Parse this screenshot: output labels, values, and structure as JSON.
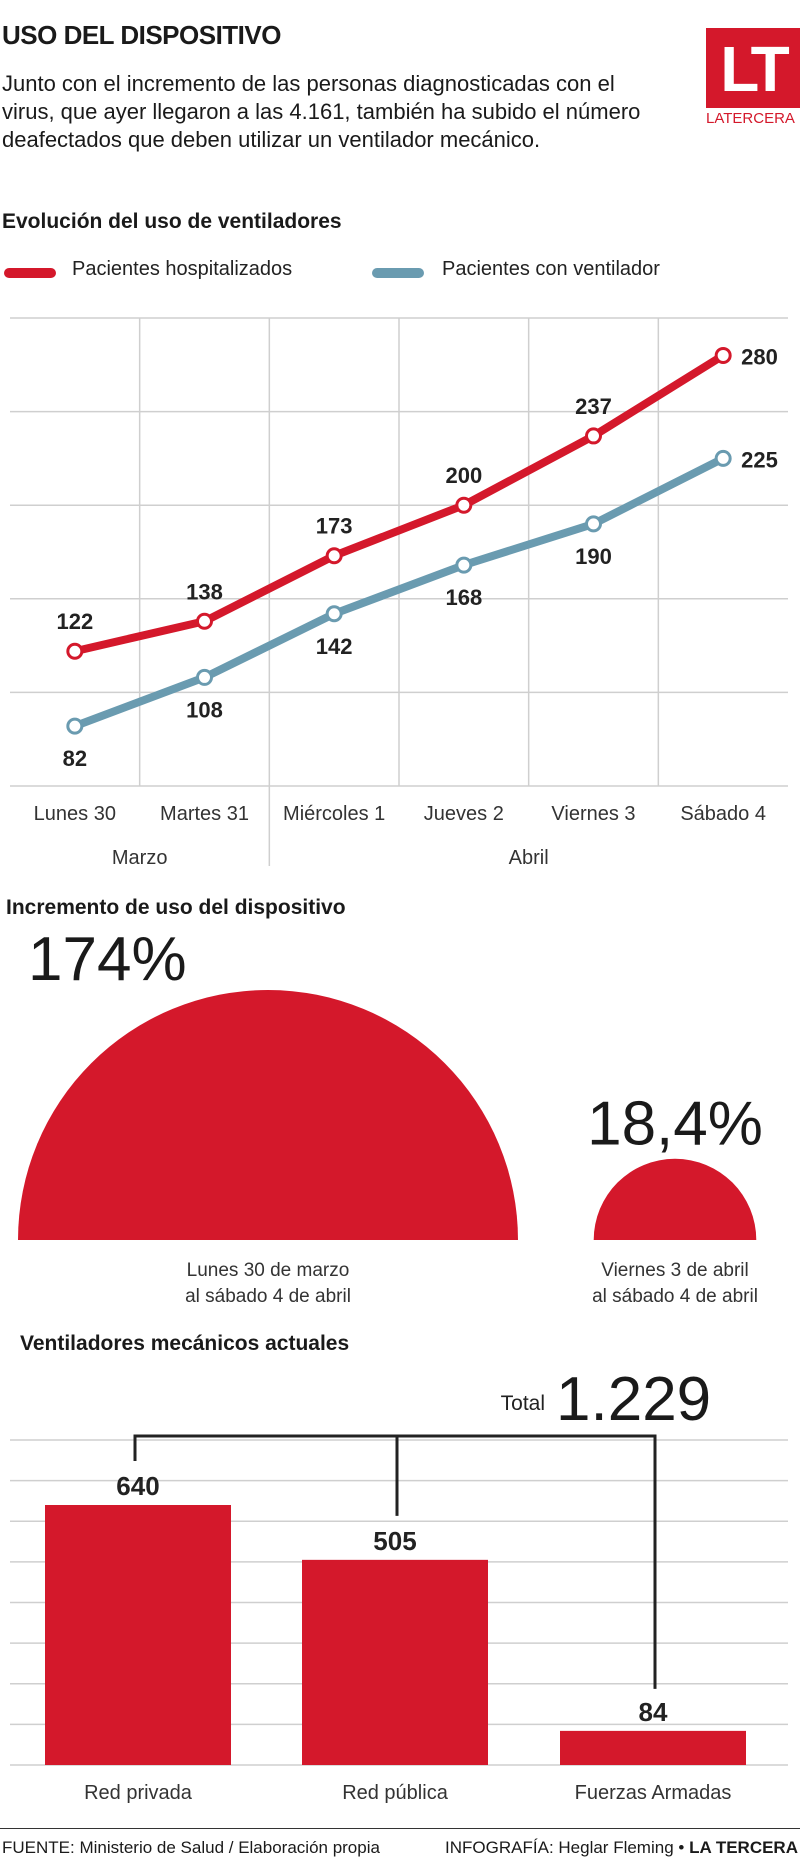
{
  "header": {
    "title": "USO DEL DISPOSITIVO",
    "intro": "Junto con el incremento de las personas diagnosticadas con el virus, que ayer llegaron a las 4.161, también ha subido el número deafectados que deben utilizar un ventilador mecánico.",
    "logo_mark": "LT",
    "logo_word": "LATERCERA"
  },
  "colors": {
    "red": "#d4182b",
    "blue": "#6a9bb0",
    "grid": "#cfcfcf"
  },
  "chart_data": [
    {
      "type": "line",
      "title": "Evolución del uso de ventiladores",
      "categories": [
        "Lunes 30",
        "Martes 31",
        "Miércoles 1",
        "Jueves 2",
        "Viernes 3",
        "Sábado 4"
      ],
      "month_groups": [
        {
          "label": "Marzo",
          "categories": [
            "Lunes 30",
            "Martes 31"
          ]
        },
        {
          "label": "Abril",
          "categories": [
            "Miércoles 1",
            "Jueves 2",
            "Viernes 3",
            "Sábado 4"
          ]
        }
      ],
      "series": [
        {
          "name": "Pacientes hospitalizados",
          "color": "#d4182b",
          "values": [
            122,
            138,
            173,
            200,
            237,
            280
          ]
        },
        {
          "name": "Pacientes con ventilador",
          "color": "#6a9bb0",
          "values": [
            82,
            108,
            142,
            168,
            190,
            225
          ]
        }
      ],
      "ylim": [
        50,
        300
      ],
      "grid": true,
      "legend": "top-left"
    },
    {
      "type": "other",
      "title": "Incremento de uso del dispositivo",
      "items": [
        {
          "value_label": "174%",
          "value": 174,
          "period_line1": "Lunes 30 de marzo",
          "period_line2": "al sábado 4 de abril"
        },
        {
          "value_label": "18,4%",
          "value": 18.4,
          "period_line1": "Viernes 3 de abril",
          "period_line2": "al sábado 4 de abril"
        }
      ]
    },
    {
      "type": "bar",
      "title": "Ventiladores mecánicos actuales",
      "total_label": "Total",
      "total_value": "1.229",
      "categories": [
        "Red privada",
        "Red pública",
        "Fuerzas Armadas"
      ],
      "values": [
        640,
        505,
        84
      ],
      "ylim": [
        0,
        800
      ],
      "grid": true
    }
  ],
  "footer": {
    "source": "FUENTE: Ministerio de Salud / Elaboración propia",
    "credit_prefix": "INFOGRAFÍA: Heglar Fleming •",
    "credit_brand": "LA TERCERA"
  }
}
